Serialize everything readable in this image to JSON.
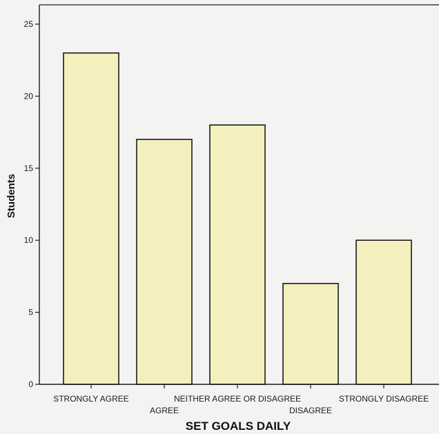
{
  "chart_data": {
    "type": "bar",
    "categories": [
      "STRONGLY AGREE",
      "AGREE",
      "NEITHER AGREE OR DISAGREE",
      "DISAGREE",
      "STRONGLY DISAGREE"
    ],
    "values": [
      23,
      17,
      18,
      7,
      10
    ],
    "xlabel": "SET GOALS DAILY",
    "ylabel": "Students",
    "ylim": [
      0,
      25
    ],
    "yticks": [
      0,
      5,
      10,
      15,
      20,
      25
    ],
    "grid": false,
    "legend": "none",
    "colors": {
      "bar_fill": "#f3f0bd",
      "bar_stroke": "#1a1a1a",
      "axis": "#1a1a1a"
    }
  }
}
